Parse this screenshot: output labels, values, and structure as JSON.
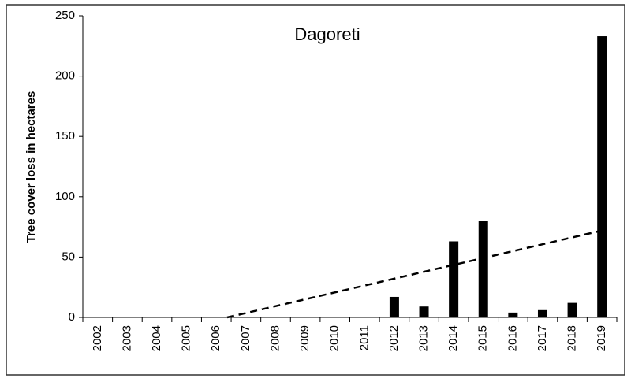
{
  "chart_data": {
    "type": "bar",
    "title": "Dagoreti",
    "ylabel": "Tree cover loss in hectares",
    "categories": [
      "2002",
      "2003",
      "2004",
      "2005",
      "2006",
      "2007",
      "2008",
      "2009",
      "2010",
      "2011",
      "2012",
      "2013",
      "2014",
      "2015",
      "2016",
      "2017",
      "2018",
      "2019"
    ],
    "values": [
      0,
      0,
      0,
      0,
      0,
      0,
      0,
      0,
      0,
      0,
      17,
      9,
      63,
      80,
      4,
      6,
      12,
      233
    ],
    "color": "#000000",
    "trendline": "linear",
    "ylim": [
      0,
      250
    ],
    "yticks": [
      0,
      50,
      100,
      150,
      200,
      250
    ],
    "grid": false
  }
}
